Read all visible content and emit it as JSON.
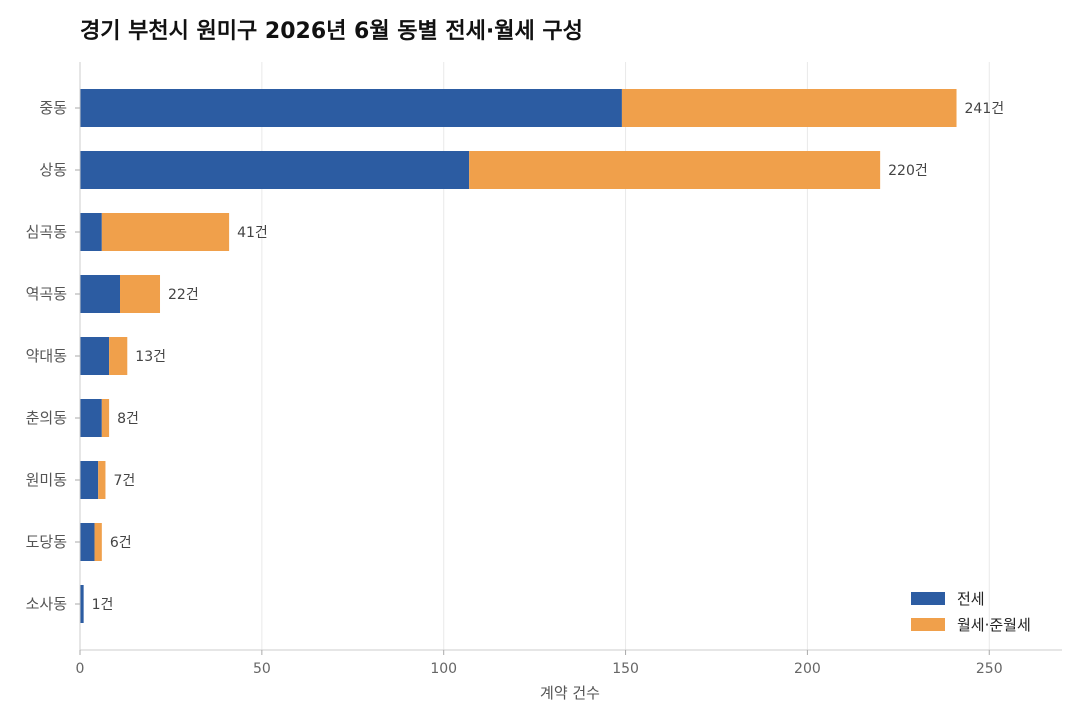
{
  "chart_data": {
    "type": "bar",
    "orientation": "horizontal",
    "stacked": true,
    "title": "경기 부천시 원미구 2026년 6월 동별 전세·월세 구성",
    "xlabel": "계약 건수",
    "ylabel": "",
    "xlim": [
      0,
      270
    ],
    "xticks": [
      0,
      50,
      100,
      150,
      200,
      250
    ],
    "categories": [
      "중동",
      "상동",
      "심곡동",
      "역곡동",
      "약대동",
      "춘의동",
      "원미동",
      "도당동",
      "소사동"
    ],
    "series": [
      {
        "name": "전세",
        "color": "#2c5ca2",
        "values": [
          149,
          107,
          6,
          11,
          8,
          6,
          5,
          4,
          1
        ]
      },
      {
        "name": "월세·준월세",
        "color": "#f0a04b",
        "values": [
          92,
          113,
          35,
          11,
          5,
          2,
          2,
          2,
          0
        ]
      }
    ],
    "totals": [
      241,
      220,
      41,
      22,
      13,
      8,
      7,
      6,
      1
    ],
    "total_labels": [
      "241건",
      "220건",
      "41건",
      "22건",
      "13건",
      "8건",
      "7건",
      "6건",
      "1건"
    ],
    "grid": {
      "x": true,
      "y": false
    },
    "legend": "bottom-right"
  }
}
